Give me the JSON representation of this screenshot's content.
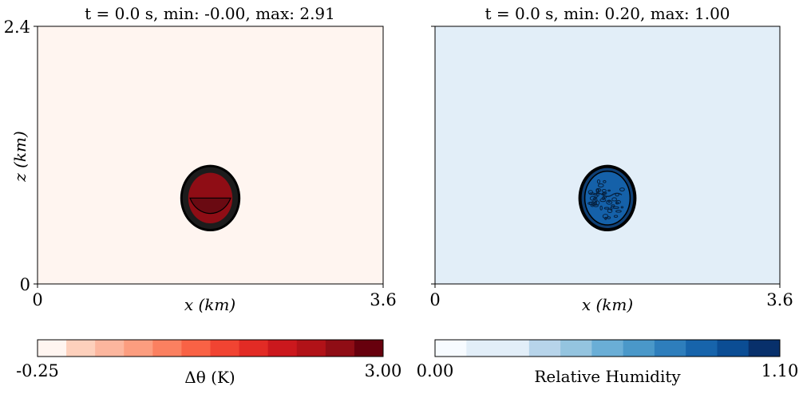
{
  "chart_data": [
    {
      "type": "heatmap",
      "title": "t = 0.0 s, min: -0.00, max: 2.91",
      "xlabel": "x (km)",
      "ylabel": "z (km)",
      "x_ticks": [
        "0",
        "3.6"
      ],
      "y_ticks": [
        "0",
        "2.4"
      ],
      "xlim": [
        0,
        3.6
      ],
      "ylim": [
        0,
        2.4
      ],
      "background_color": "#fff5f0",
      "blob": {
        "center_x_km": 1.8,
        "center_z_km": 0.8,
        "radius_x_km": 0.28,
        "radius_z_km": 0.28,
        "upper_color": "#8f0d15",
        "lower_color": "#6a0a12"
      },
      "colorbar": {
        "label": "Δθ (K)",
        "min_label": "-0.25",
        "max_label": "3.00",
        "min": -0.25,
        "max": 3.0,
        "colors": [
          "#fff5f0",
          "#fdd0bc",
          "#fcb69e",
          "#fc9d7f",
          "#fb8060",
          "#f96245",
          "#f14432",
          "#e22b25",
          "#cb181d",
          "#b11218",
          "#8f0d15",
          "#67000d"
        ]
      }
    },
    {
      "type": "heatmap",
      "title": "t = 0.0 s, min: 0.20, max: 1.00",
      "xlabel": "x (km)",
      "x_ticks": [
        "0",
        "3.6"
      ],
      "xlim": [
        0,
        3.6
      ],
      "ylim": [
        0,
        2.4
      ],
      "background_color": "#e2eef8",
      "blob": {
        "center_x_km": 1.8,
        "center_z_km": 0.8,
        "radius_x_km": 0.27,
        "radius_z_km": 0.28,
        "fill_color": "#1561a9"
      },
      "colorbar": {
        "label": "Relative Humidity",
        "min_label": "0.00",
        "max_label": "1.10",
        "min": 0.0,
        "max": 1.1,
        "colors": [
          "#f7fbff",
          "#e2eef8",
          "#e2eef8",
          "#b7d4ea",
          "#94c4df",
          "#6aaed6",
          "#4a98c9",
          "#2e7ebc",
          "#1764ab",
          "#0b4d94",
          "#08306b"
        ]
      }
    }
  ]
}
